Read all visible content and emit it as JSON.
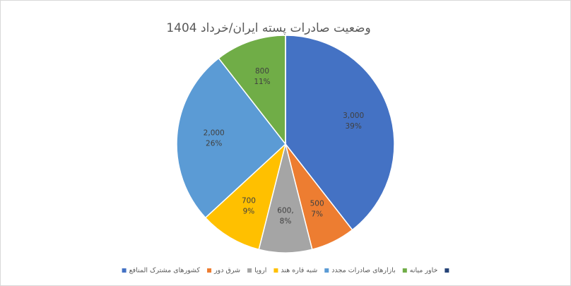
{
  "chart_data": {
    "type": "pie",
    "title": "وضعیت صادرات پسته ایران/خرداد 1404",
    "categories": [
      "کشورهای مشترک المنافع",
      "شرق دور",
      "اروپا",
      "شبه قاره هند",
      "بازارهای صادرات مجدد",
      "خاور میانه",
      null
    ],
    "values": [
      3000,
      500,
      600,
      700,
      2000,
      800,
      0
    ],
    "value_labels": [
      "3,000",
      "500",
      "600,",
      "700",
      "2,000",
      "800",
      null
    ],
    "percent_labels": [
      "39%",
      "7%",
      "8%",
      "9%",
      "26%",
      "11%",
      null
    ],
    "colors": [
      "#4472c4",
      "#ed7d31",
      "#a5a5a5",
      "#ffc000",
      "#5b9bd5",
      "#70ad47",
      "#264478"
    ],
    "legend": "bottom"
  }
}
